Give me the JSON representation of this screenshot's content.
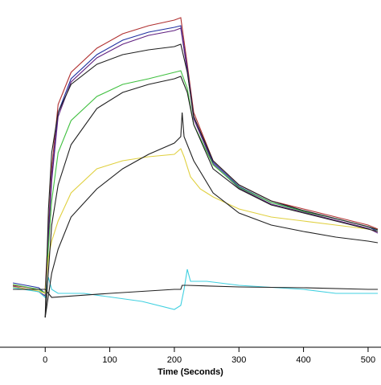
{
  "chart_data": {
    "type": "line",
    "x_label": "Time (Seconds)",
    "xlim": [
      -70,
      520
    ],
    "ylim": [
      -72,
      360
    ],
    "xticks": [
      0,
      100,
      200,
      300,
      400,
      500
    ],
    "series": [
      {
        "color": "#b03030",
        "x": [
          -50,
          -10,
          0,
          10,
          20,
          40,
          80,
          120,
          160,
          200,
          210,
          220,
          230,
          260,
          300,
          350,
          400,
          450,
          500,
          515
        ],
        "values": [
          5,
          0,
          0,
          150,
          230,
          270,
          300,
          318,
          328,
          335,
          338,
          280,
          220,
          160,
          130,
          110,
          100,
          90,
          80,
          75
        ]
      },
      {
        "color": "#2030a0",
        "x": [
          -50,
          -10,
          0,
          10,
          20,
          40,
          80,
          120,
          160,
          200,
          210,
          220,
          230,
          260,
          300,
          350,
          400,
          450,
          500,
          515
        ],
        "values": [
          8,
          2,
          -5,
          140,
          220,
          262,
          292,
          310,
          320,
          326,
          328,
          275,
          215,
          158,
          128,
          108,
          98,
          88,
          78,
          72
        ]
      },
      {
        "color": "#602080",
        "x": [
          -50,
          -10,
          0,
          10,
          20,
          40,
          80,
          120,
          160,
          200,
          210,
          220,
          230,
          260,
          300,
          350,
          400,
          450,
          500,
          515
        ],
        "values": [
          4,
          -3,
          -8,
          135,
          215,
          258,
          288,
          305,
          316,
          322,
          325,
          272,
          212,
          156,
          126,
          106,
          96,
          86,
          76,
          70
        ]
      },
      {
        "color": "#40c040",
        "x": [
          -50,
          -10,
          0,
          10,
          20,
          40,
          80,
          120,
          160,
          200,
          210,
          220,
          230,
          260,
          300,
          350,
          400,
          450,
          500,
          515
        ],
        "values": [
          6,
          0,
          -5,
          110,
          170,
          210,
          240,
          255,
          262,
          270,
          272,
          250,
          205,
          155,
          127,
          108,
          97,
          88,
          78,
          74
        ]
      },
      {
        "color": "#e0d040",
        "x": [
          -50,
          -10,
          0,
          5,
          10,
          20,
          40,
          80,
          120,
          160,
          200,
          210,
          215,
          225,
          240,
          260,
          300,
          350,
          400,
          450,
          500,
          515
        ],
        "values": [
          3,
          -2,
          -5,
          40,
          60,
          85,
          120,
          150,
          160,
          165,
          168,
          175,
          165,
          140,
          125,
          115,
          100,
          90,
          85,
          80,
          75,
          72
        ]
      },
      {
        "color": "#40d0e0",
        "x": [
          -50,
          -10,
          0,
          5,
          10,
          20,
          60,
          150,
          200,
          210,
          215,
          220,
          225,
          250,
          300,
          400,
          450,
          500,
          515
        ],
        "values": [
          2,
          -3,
          -10,
          15,
          0,
          -5,
          -5,
          -15,
          -25,
          -20,
          0,
          25,
          10,
          10,
          5,
          0,
          -5,
          -5,
          -5
        ]
      },
      {
        "color": "#202020",
        "x": [
          0,
          5,
          10,
          20,
          40,
          80,
          120,
          160,
          200,
          210,
          220,
          230,
          260,
          300,
          350,
          400,
          450,
          500,
          515
        ],
        "values": [
          -35,
          100,
          170,
          220,
          255,
          280,
          292,
          298,
          302,
          305,
          270,
          215,
          160,
          130,
          110,
          98,
          88,
          78,
          74
        ]
      },
      {
        "color": "#202020",
        "x": [
          0,
          10,
          20,
          40,
          80,
          120,
          160,
          200,
          210,
          220,
          230,
          260,
          300,
          350,
          400,
          450,
          500,
          515
        ],
        "values": [
          -35,
          80,
          130,
          180,
          225,
          245,
          255,
          262,
          265,
          245,
          205,
          150,
          125,
          105,
          95,
          85,
          75,
          72
        ]
      },
      {
        "color": "#202020",
        "x": [
          0,
          10,
          20,
          40,
          80,
          120,
          160,
          200,
          210,
          212,
          215,
          230,
          260,
          300,
          350,
          400,
          450,
          500,
          515
        ],
        "values": [
          -35,
          20,
          50,
          90,
          125,
          150,
          168,
          182,
          190,
          220,
          190,
          160,
          120,
          95,
          80,
          72,
          65,
          60,
          58
        ]
      },
      {
        "color": "#202020",
        "x": [
          -50,
          0,
          10,
          100,
          200,
          210,
          212,
          220,
          300,
          400,
          500,
          515
        ],
        "values": [
          0,
          0,
          -10,
          -5,
          0,
          0,
          5,
          5,
          3,
          2,
          0,
          0
        ]
      }
    ]
  }
}
